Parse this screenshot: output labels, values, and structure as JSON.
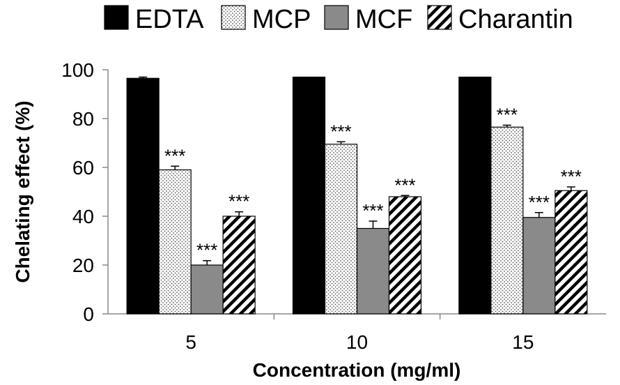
{
  "chart_data": {
    "type": "bar",
    "categories": [
      "5",
      "10",
      "15"
    ],
    "series": [
      {
        "name": "EDTA",
        "pattern": "solid",
        "values": [
          96.5,
          97,
          97
        ],
        "errors": [
          0.5,
          0,
          0
        ],
        "significance": [
          "",
          "",
          ""
        ]
      },
      {
        "name": "MCP",
        "pattern": "dots",
        "values": [
          59,
          69.5,
          76.5
        ],
        "errors": [
          1.5,
          1,
          0.8
        ],
        "significance": [
          "***",
          "***",
          "***"
        ]
      },
      {
        "name": "MCF",
        "pattern": "gray",
        "values": [
          20,
          35,
          39.5
        ],
        "errors": [
          1.8,
          3,
          2
        ],
        "significance": [
          "***",
          "***",
          "***"
        ]
      },
      {
        "name": "Charantin",
        "pattern": "hatch",
        "values": [
          40,
          48,
          50.5
        ],
        "errors": [
          1.8,
          0.5,
          1.5
        ],
        "significance": [
          "***",
          "***",
          "***"
        ]
      }
    ],
    "xlabel": "Concentration (mg/ml)",
    "ylabel": "Chelating effect (%)",
    "ylim": [
      0,
      100
    ],
    "yticks": [
      "0",
      "20",
      "40",
      "60",
      "80",
      "100"
    ],
    "legend_position": "top",
    "colors": {
      "EDTA": "#000000",
      "MCP": "#ffffff",
      "MCF": "#8a8a8a",
      "Charantin": "#ffffff"
    }
  }
}
